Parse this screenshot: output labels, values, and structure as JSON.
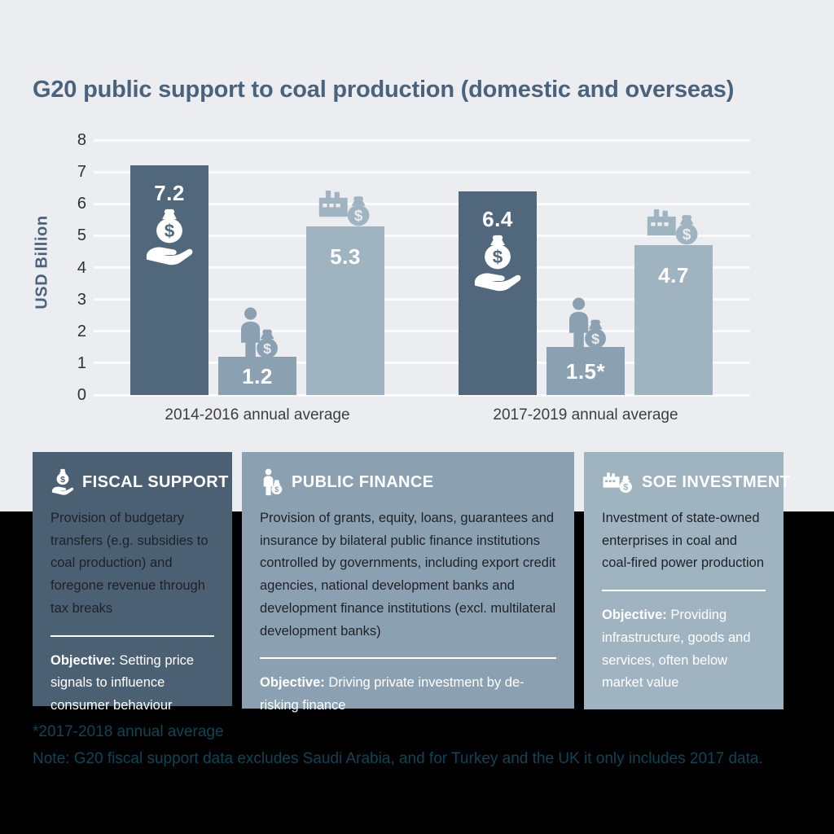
{
  "title": "G20 public support to coal production (domestic and overseas)",
  "colors": {
    "background_top": "#ecedf1",
    "background_bottom": "#000000",
    "title": "#4a637c",
    "gridline": "#fafbfd",
    "axis_text": "#2c3136",
    "bar_label": "#ffffff",
    "note_text": "#0d4557"
  },
  "chart_data": {
    "type": "bar",
    "title": "G20 public support to coal production (domestic and overseas)",
    "xlabel": "",
    "ylabel": "USD Billion",
    "ylim": [
      0,
      8
    ],
    "yticks": [
      0,
      1,
      2,
      3,
      4,
      5,
      6,
      7,
      8
    ],
    "grid": true,
    "legend_position": "none",
    "categories": [
      "2014-2016 annual average",
      "2017-2019 annual average"
    ],
    "series": [
      {
        "name": "Fiscal support",
        "values": [
          7.2,
          6.4
        ],
        "labels": [
          "7.2",
          "6.4"
        ],
        "color": "#51687c",
        "icon": "money-bag-hand-icon",
        "icon_placement": "inside"
      },
      {
        "name": "Public finance",
        "values": [
          1.2,
          1.5
        ],
        "labels": [
          "1.2",
          "1.5*"
        ],
        "color": "#8ba1b1",
        "icon": "person-money-bag-icon",
        "icon_placement": "above"
      },
      {
        "name": "SOE investment",
        "values": [
          5.3,
          4.7
        ],
        "labels": [
          "5.3",
          "4.7"
        ],
        "color": "#a0b3c0",
        "icon": "factory-money-bag-icon",
        "icon_placement": "above"
      }
    ]
  },
  "cards": [
    {
      "title": "FISCAL SUPPORT",
      "icon": "money-bag-hand-icon",
      "bg": "#4c6073",
      "body": "Provision of budgetary transfers (e.g. subsidies to coal production) and foregone revenue through tax breaks",
      "objective_label": "Objective:",
      "objective_text": " Setting price signals to influence consumer behaviour"
    },
    {
      "title": "PUBLIC FINANCE",
      "icon": "person-money-bag-icon",
      "bg": "#8ba1b1",
      "body": "Provision of grants, equity, loans, guarantees and insurance by bilateral public finance institutions controlled by governments, including export credit agencies, national development banks and development finance institutions (excl. multilateral development banks)",
      "objective_label": "Objective:",
      "objective_text": " Driving private investment by de-risking finance"
    },
    {
      "title": "SOE INVESTMENT",
      "icon": "factory-money-bag-icon",
      "bg": "#a0b3c0",
      "body": "Investment of state-owned enterprises in coal and coal-fired power production",
      "objective_label": "Objective:",
      "objective_text": " Providing infrastructure, goods and services, often below market value"
    }
  ],
  "notes": [
    "*2017-2018 annual average",
    "Note: G20 fiscal support data excludes Saudi Arabia, and for Turkey and the UK it only includes 2017 data."
  ]
}
